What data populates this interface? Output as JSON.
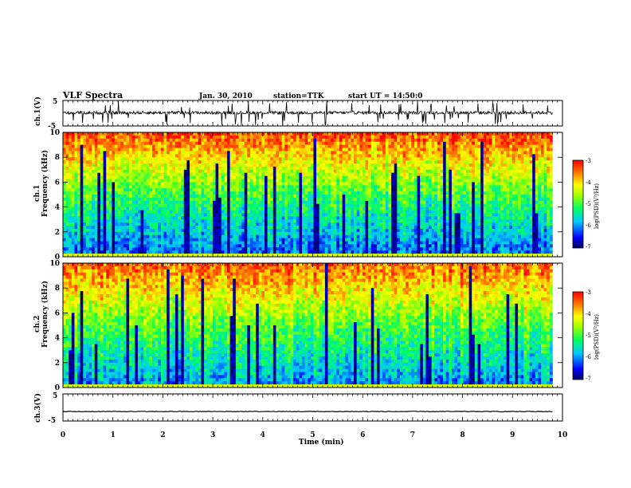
{
  "header": {
    "title": "VLF Spectra",
    "date": "Jan. 30, 2010",
    "station": "station=TTK",
    "start": "start UT = 14:50:0"
  },
  "chart_data": [
    {
      "id": "ch1-waveform",
      "type": "line",
      "ylabel": "ch.1(V)",
      "ylim": [
        -5,
        5
      ],
      "yticks": [
        "5",
        "-5"
      ],
      "xlim": [
        0,
        10
      ],
      "baseline_volts": 0.2,
      "noise_amplitude_volts": 0.6,
      "spike_amplitude_volts": 5,
      "data_extent_min": 9.8
    },
    {
      "id": "ch1-spectrogram",
      "type": "heatmap",
      "xlabel": "",
      "ylabel": "Frequency (kHz)",
      "channel_label": "ch.1",
      "xlim": [
        0,
        10
      ],
      "ylim": [
        0,
        10
      ],
      "yticks": [
        "0",
        "2",
        "4",
        "6",
        "8",
        "10"
      ],
      "colorbar": {
        "label": "log(PSD)(V²/Hz)",
        "range": [
          -7,
          -3
        ],
        "ticks": [
          "-3",
          "-4",
          "-5",
          "-6",
          "-7"
        ],
        "colormap": [
          "#00008b",
          "#0000ff",
          "#00bfff",
          "#00ff80",
          "#80ff00",
          "#ffff00",
          "#ff8000",
          "#ff0000"
        ]
      },
      "description_levels": {
        "low_freq_log_psd": -6.2,
        "mid_freq_log_psd": -5.0,
        "high_freq_log_psd": -3.3
      }
    },
    {
      "id": "ch2-spectrogram",
      "type": "heatmap",
      "xlabel": "",
      "ylabel": "Frequency (kHz)",
      "channel_label": "ch.2",
      "xlim": [
        0,
        10
      ],
      "ylim": [
        0,
        10
      ],
      "yticks": [
        "0",
        "2",
        "4",
        "6",
        "8",
        "10"
      ],
      "colorbar": {
        "label": "log(PSD)(V²/Hz)",
        "range": [
          -7,
          -3
        ],
        "ticks": [
          "-3",
          "-4",
          "-5",
          "-6",
          "-7"
        ],
        "colormap": [
          "#00008b",
          "#0000ff",
          "#00bfff",
          "#00ff80",
          "#80ff00",
          "#ffff00",
          "#ff8000",
          "#ff0000"
        ]
      },
      "description_levels": {
        "low_freq_log_psd": -6.0,
        "mid_freq_log_psd": -4.9,
        "high_freq_log_psd": -3.4
      }
    },
    {
      "id": "ch3-waveform",
      "type": "line",
      "ylabel": "ch.3(V)",
      "xlabel": "Time (min)",
      "ylim": [
        -5,
        5
      ],
      "yticks": [
        "5",
        "-5"
      ],
      "xlim": [
        0,
        10
      ],
      "xticks": [
        "0",
        "1",
        "2",
        "3",
        "4",
        "5",
        "6",
        "7",
        "8",
        "9",
        "10"
      ],
      "baseline_volts": -1.5,
      "data_extent_min": 9.8
    }
  ]
}
